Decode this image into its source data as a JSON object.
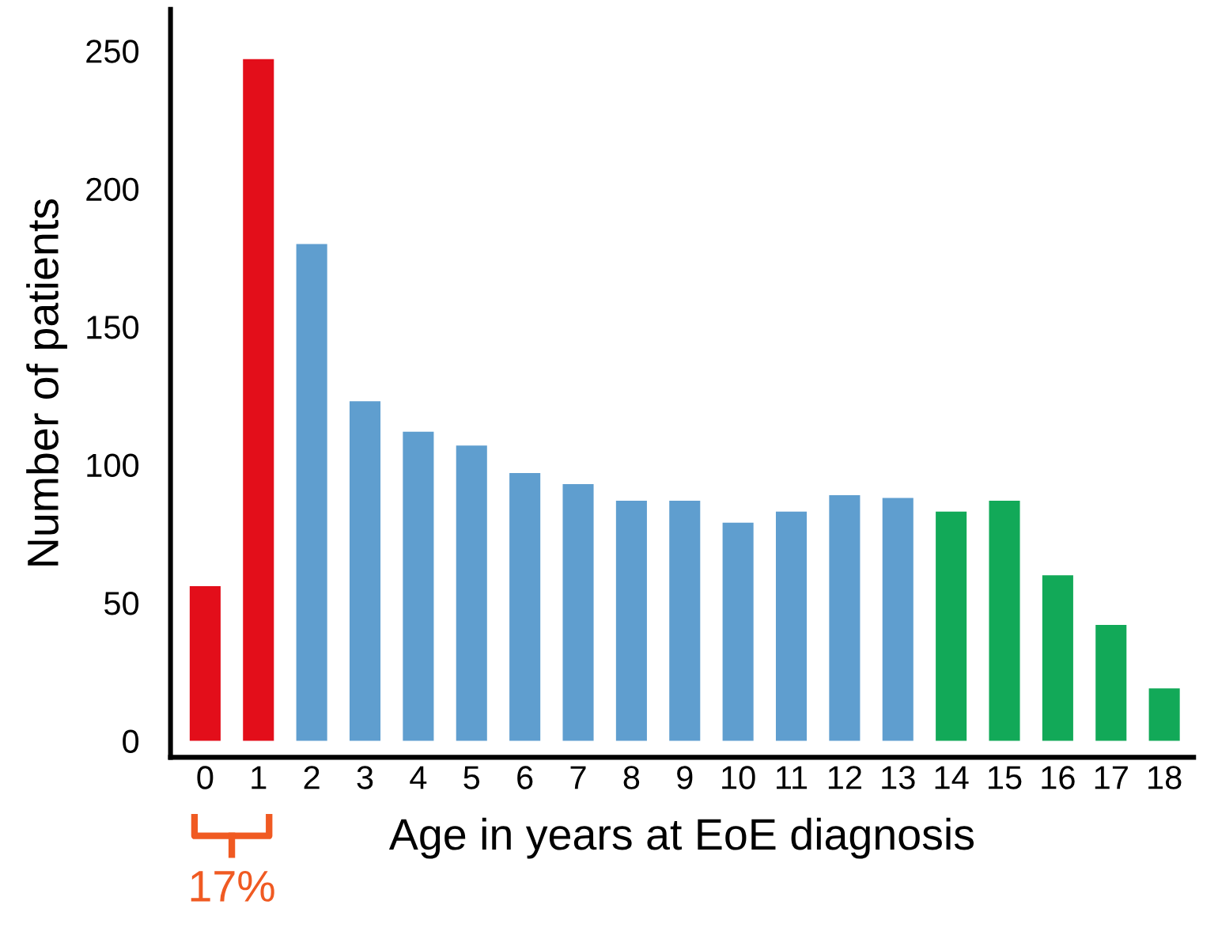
{
  "chart_data": {
    "type": "bar",
    "xlabel": "Age in years at EoE diagnosis",
    "ylabel": "Number of patients",
    "categories": [
      "0",
      "1",
      "2",
      "3",
      "4",
      "5",
      "6",
      "7",
      "8",
      "9",
      "10",
      "11",
      "12",
      "13",
      "14",
      "15",
      "16",
      "17",
      "18"
    ],
    "values": [
      56,
      247,
      180,
      123,
      112,
      107,
      97,
      93,
      87,
      87,
      79,
      83,
      89,
      88,
      83,
      87,
      60,
      42,
      19
    ],
    "colors": [
      "#e30e1a",
      "#e30e1a",
      "#5f9ecf",
      "#5f9ecf",
      "#5f9ecf",
      "#5f9ecf",
      "#5f9ecf",
      "#5f9ecf",
      "#5f9ecf",
      "#5f9ecf",
      "#5f9ecf",
      "#5f9ecf",
      "#5f9ecf",
      "#5f9ecf",
      "#12a958",
      "#12a958",
      "#12a958",
      "#12a958",
      "#12a958"
    ],
    "ylim": [
      -6,
      265
    ],
    "yticks": [
      0,
      50,
      100,
      150,
      200,
      250
    ],
    "grid": false,
    "annotations": [
      "17%"
    ]
  }
}
